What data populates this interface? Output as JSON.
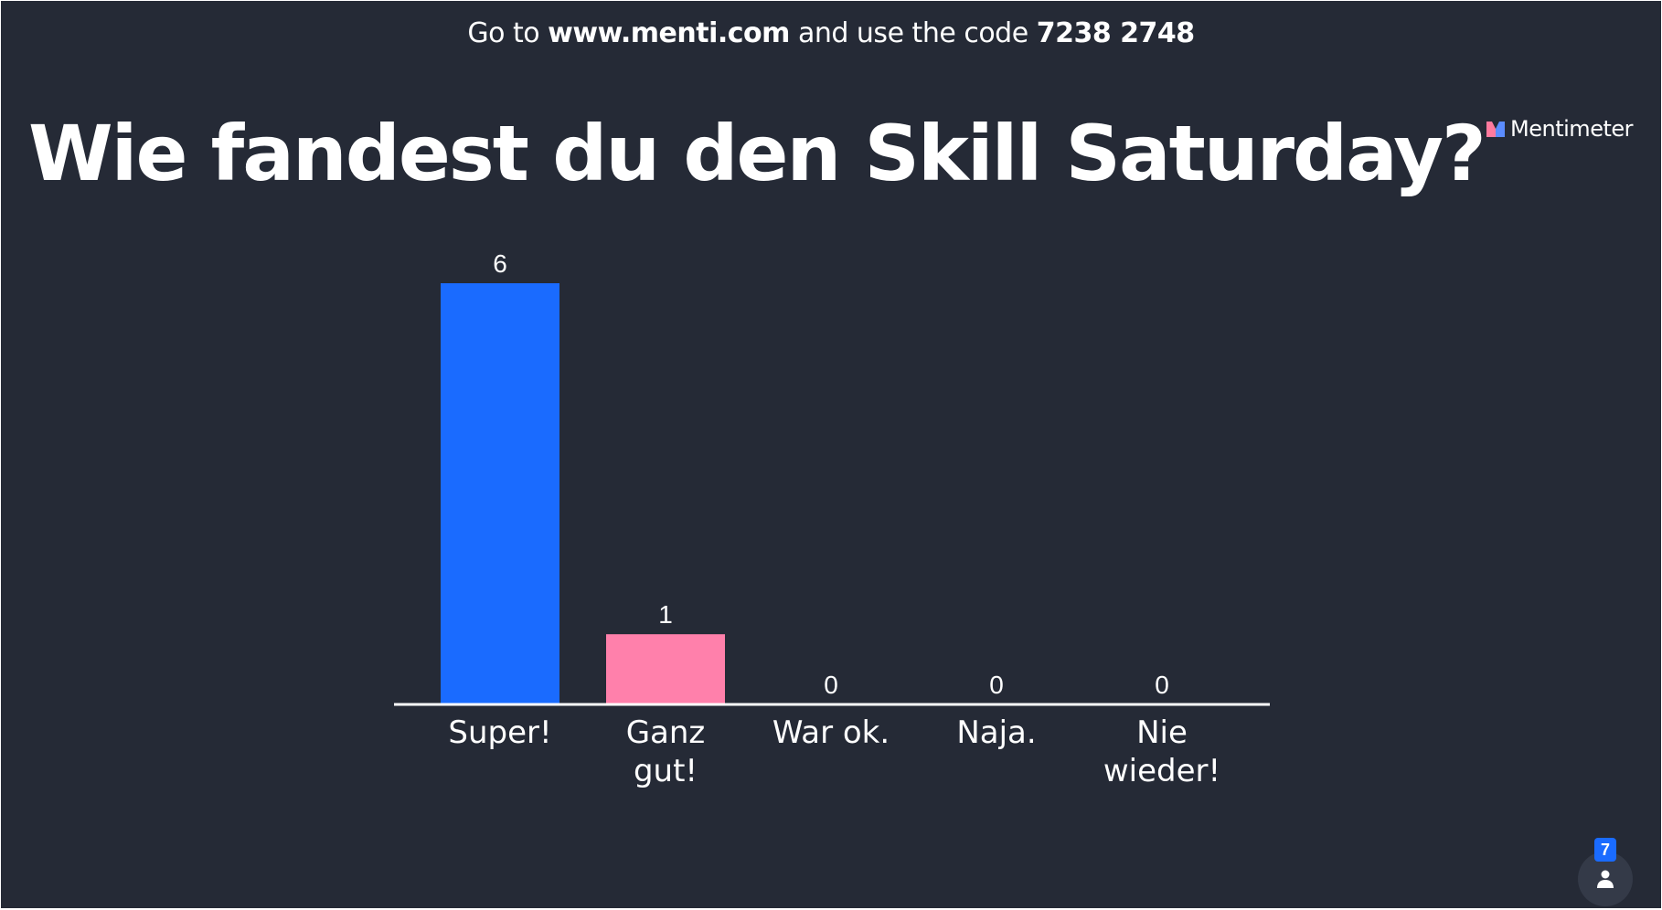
{
  "banner": {
    "prefix": "Go to ",
    "url": "www.menti.com",
    "middle": " and use the code ",
    "code": "7238 2748"
  },
  "question": {
    "title": "Wie fandest du den Skill Saturday?"
  },
  "brand": {
    "name": "Mentimeter",
    "icon": "mentimeter-logo-icon"
  },
  "participants": {
    "count": "7",
    "icon": "person-icon"
  },
  "colors": {
    "background": "#252a36",
    "bar_primary": "#1a6bff",
    "bar_secondary": "#ff80ab",
    "axis": "#ffffff",
    "text": "#ffffff"
  },
  "chart_data": {
    "type": "bar",
    "categories": [
      "Super!",
      "Ganz gut!",
      "War ok.",
      "Naja.",
      "Nie wieder!"
    ],
    "category_lines": [
      [
        "Super!"
      ],
      [
        "Ganz",
        "gut!"
      ],
      [
        "War ok."
      ],
      [
        "Naja."
      ],
      [
        "Nie",
        "wieder!"
      ]
    ],
    "values": [
      6,
      1,
      0,
      0,
      0
    ],
    "bar_colors": [
      "#1a6bff",
      "#ff80ab",
      "#ff80ab",
      "#ff80ab",
      "#ff80ab"
    ],
    "ylim": [
      0,
      6
    ],
    "grid": false,
    "legend": "none",
    "xlabel": "",
    "ylabel": ""
  }
}
